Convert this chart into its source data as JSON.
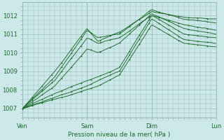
{
  "bg_color": "#cce8e8",
  "grid_color": "#99bbbb",
  "line_color": "#1a6b2a",
  "ylabel_ticks": [
    1007,
    1008,
    1009,
    1010,
    1011,
    1012
  ],
  "xlabels": [
    "Ven",
    "Sam",
    "Dim",
    "Lun"
  ],
  "xlabel_text": "Pression niveau de la mer( hPa )",
  "ylim": [
    1006.5,
    1012.7
  ],
  "xlim": [
    0,
    72
  ],
  "title": ""
}
